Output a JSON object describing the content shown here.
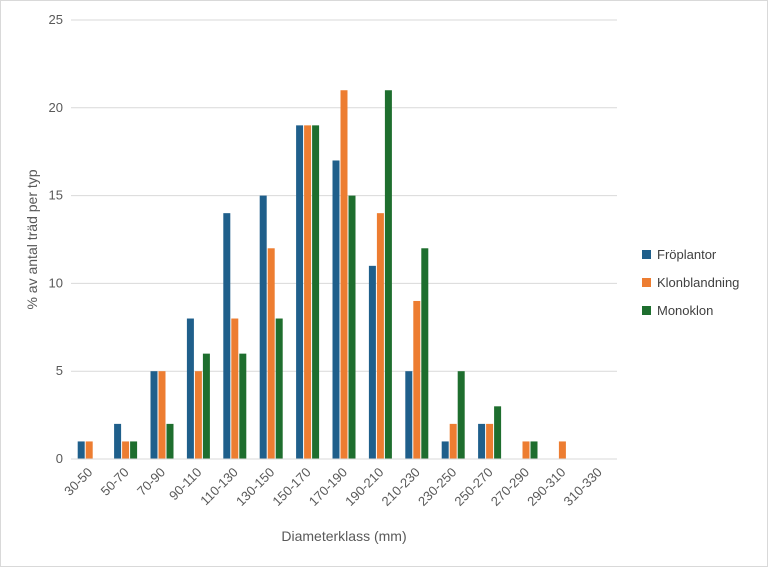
{
  "chart_data": {
    "type": "bar",
    "title": "",
    "xlabel": "Diameterklass (mm)",
    "ylabel": "% av antal träd per typ",
    "ylim": [
      0,
      25
    ],
    "yticks": [
      0,
      5,
      10,
      15,
      20,
      25
    ],
    "grid": true,
    "legend_position": "right",
    "categories": [
      "30-50",
      "50-70",
      "70-90",
      "90-110",
      "110-130",
      "130-150",
      "150-170",
      "170-190",
      "190-210",
      "210-230",
      "230-250",
      "250-270",
      "270-290",
      "290-310",
      "310-330"
    ],
    "series": [
      {
        "name": "Fröplantor",
        "color": "#1f5f8b",
        "values": [
          1,
          2,
          5,
          8,
          14,
          15,
          19,
          17,
          11,
          5,
          1,
          2,
          0,
          0,
          0
        ]
      },
      {
        "name": "Klonblandning",
        "color": "#ed7d31",
        "values": [
          1,
          1,
          5,
          5,
          8,
          12,
          19,
          21,
          14,
          9,
          2,
          2,
          1,
          1,
          0
        ]
      },
      {
        "name": "Monoklon",
        "color": "#1e6e2e",
        "values": [
          0,
          1,
          2,
          6,
          6,
          8,
          19,
          15,
          21,
          12,
          5,
          3,
          1,
          0,
          0
        ]
      }
    ]
  }
}
